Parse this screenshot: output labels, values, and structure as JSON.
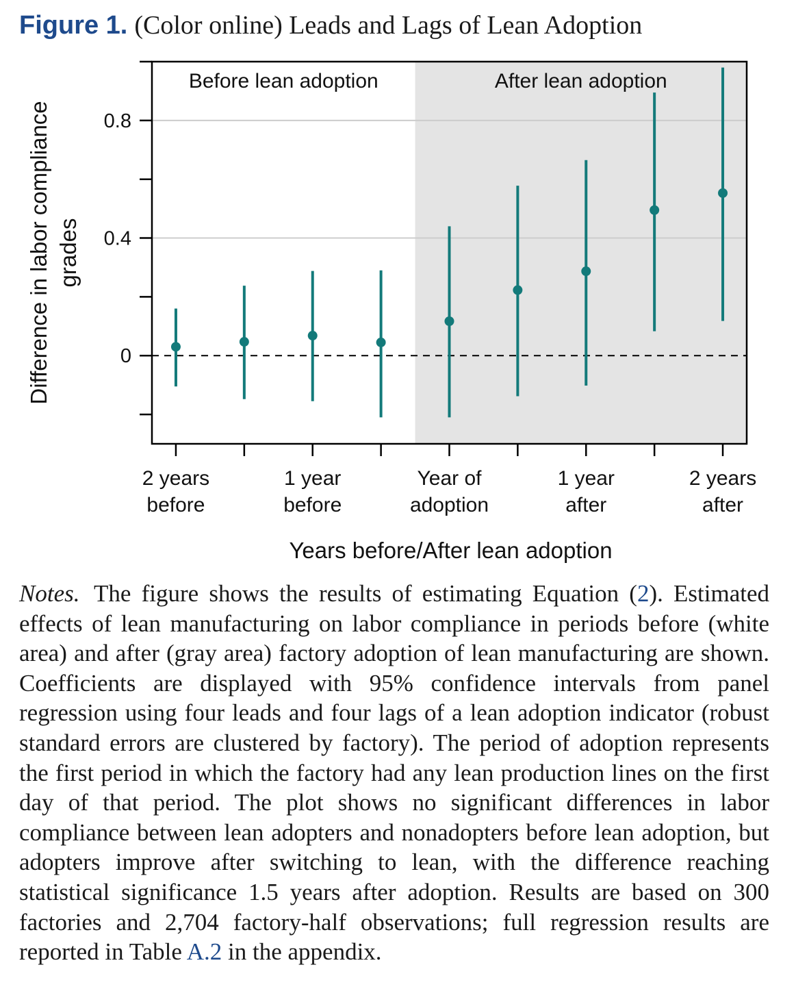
{
  "caption": {
    "label": "Figure 1.",
    "title": "(Color online) Leads and Lags of Lean Adoption"
  },
  "chart_data": {
    "type": "scatter",
    "subtype": "coefficient plot with 95% confidence intervals",
    "xlabel": "Years before/After lean adoption",
    "ylabel_lines": [
      "Difference in labor compliance",
      "grades"
    ],
    "ylim": [
      -0.3,
      1.0
    ],
    "yticks": [
      -0.2,
      0,
      0.2,
      0.4,
      0.6,
      0.8,
      1.0
    ],
    "ytick_labels": [
      "",
      "0",
      "",
      "0.4",
      "",
      "0.8",
      ""
    ],
    "grid_y": [
      0.4,
      0.8
    ],
    "zero_line": "dashed",
    "x_positions": [
      1,
      2,
      3,
      4,
      5,
      6,
      7,
      8,
      9
    ],
    "xlim": [
      0.65,
      9.35
    ],
    "x_tick_labels": [
      {
        "x": 1,
        "lines": [
          "2 years",
          "before"
        ]
      },
      {
        "x": 3,
        "lines": [
          "1 year",
          "before"
        ]
      },
      {
        "x": 5,
        "lines": [
          "Year of",
          "adoption"
        ]
      },
      {
        "x": 7,
        "lines": [
          "1 year",
          "after"
        ]
      },
      {
        "x": 9,
        "lines": [
          "2 years",
          "after"
        ]
      }
    ],
    "regions": [
      {
        "label": "Before lean adoption",
        "x_from": 0.65,
        "x_to": 4.5,
        "fill": "#ffffff"
      },
      {
        "label": "After lean adoption",
        "x_from": 4.5,
        "x_to": 9.35,
        "fill": "#e4e4e4"
      }
    ],
    "series": [
      {
        "points": [
          {
            "x": 1,
            "estimate": 0.03,
            "ci_low": -0.105,
            "ci_high": 0.16
          },
          {
            "x": 2,
            "estimate": 0.047,
            "ci_low": -0.148,
            "ci_high": 0.238
          },
          {
            "x": 3,
            "estimate": 0.068,
            "ci_low": -0.155,
            "ci_high": 0.288
          },
          {
            "x": 4,
            "estimate": 0.045,
            "ci_low": -0.21,
            "ci_high": 0.29
          },
          {
            "x": 5,
            "estimate": 0.117,
            "ci_low": -0.21,
            "ci_high": 0.44
          },
          {
            "x": 6,
            "estimate": 0.223,
            "ci_low": -0.138,
            "ci_high": 0.578
          },
          {
            "x": 7,
            "estimate": 0.287,
            "ci_low": -0.102,
            "ci_high": 0.665
          },
          {
            "x": 8,
            "estimate": 0.495,
            "ci_low": 0.083,
            "ci_high": 0.895
          },
          {
            "x": 9,
            "estimate": 0.553,
            "ci_low": 0.118,
            "ci_high": 0.98
          }
        ]
      }
    ],
    "colors": {
      "series": "#137a7a",
      "shaded_region": "#e4e4e4",
      "grid": "#cccccc",
      "axis": "#000000"
    }
  },
  "notes": {
    "label": "Notes.",
    "text_before_ref1": "The figure shows the results of estimating Equation (",
    "ref1": "2",
    "text_after_ref1": "). Estimated effects of lean manufacturing on labor compliance in periods before (white area) and after (gray area) factory adoption of lean manufacturing are shown. Coefficients are displayed with 95% confidence intervals from panel regression using four leads and four lags of a lean adoption indicator (robust standard errors are clustered by factory). The period of adoption represents the first period in which the factory had any lean production lines on the first day of that period. The plot shows no significant differences in labor compliance between lean adopters and nonadopters before lean adoption, but adopters improve after switching to lean, with the difference reaching statistical significance 1.5 years after adoption. Results are based on 300 factories and 2,704 factory-half observations; full regression results are reported in Table ",
    "ref2": "A.2",
    "text_after_ref2": " in the appendix."
  }
}
